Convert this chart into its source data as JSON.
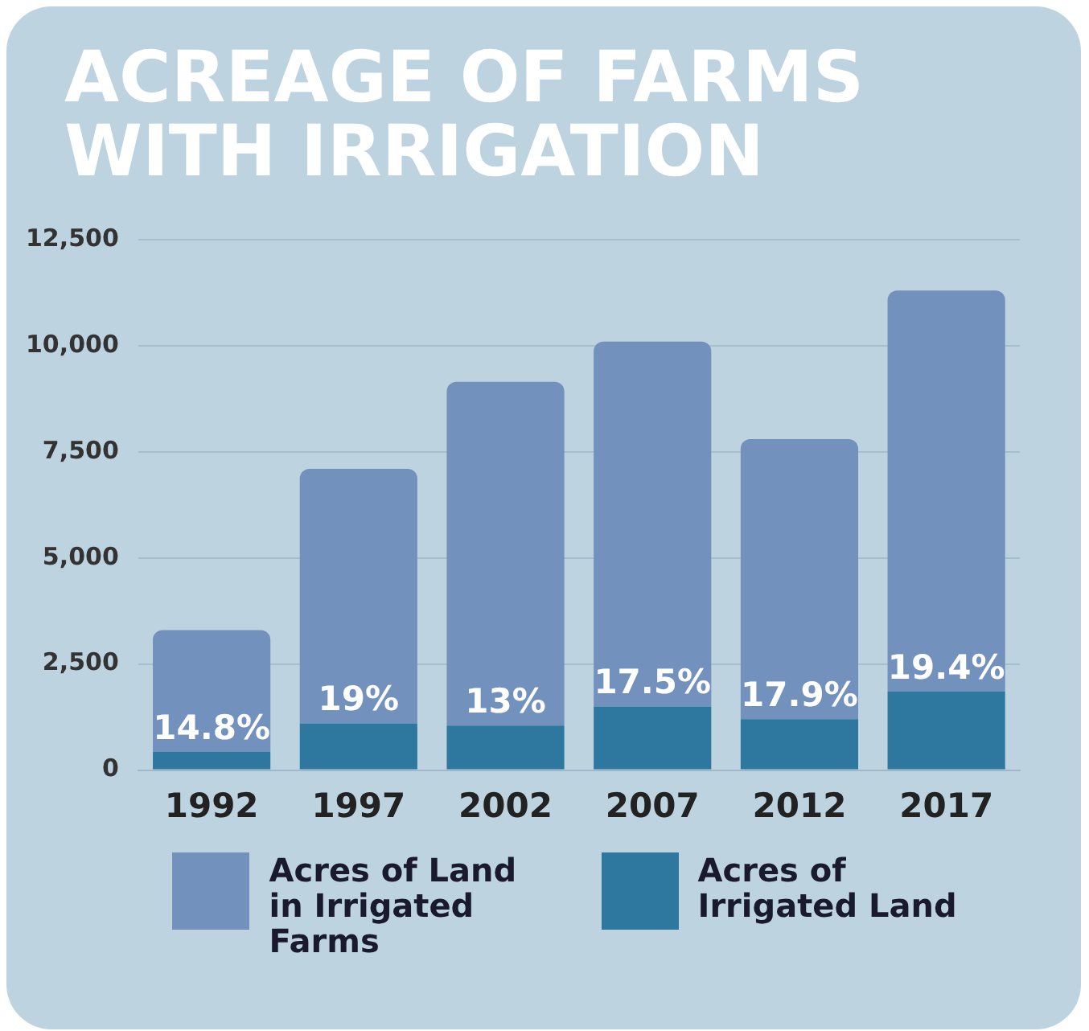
{
  "chart_data": {
    "type": "bar",
    "title": "ACREAGE OF FARMS WITH IRRIGATION",
    "categories": [
      "1992",
      "1997",
      "2002",
      "2007",
      "2012",
      "2017"
    ],
    "series": [
      {
        "name": "Acres of Irrigated Land",
        "color": "#2e78a0",
        "values": [
          430,
          1100,
          1050,
          1500,
          1200,
          1850
        ]
      },
      {
        "name": "Acres of Land in Irrigated Farms",
        "color": "#7391bd",
        "values": [
          2870,
          6000,
          8100,
          8600,
          6600,
          9450
        ]
      }
    ],
    "ylim": [
      0,
      12500
    ],
    "yticks": [
      {
        "value": 0,
        "label": "0"
      },
      {
        "value": 2500,
        "label": "2,500"
      },
      {
        "value": 5000,
        "label": "5,000"
      },
      {
        "value": 7500,
        "label": "7,500"
      },
      {
        "value": 10000,
        "label": "10,000"
      },
      {
        "value": 12500,
        "label": "12,500"
      }
    ],
    "stacked": true,
    "grid": "y",
    "legend": "bottom",
    "annotations": [
      "14.8%",
      "19%",
      "13%",
      "17.5%",
      "17.9%",
      "19.4%"
    ]
  }
}
